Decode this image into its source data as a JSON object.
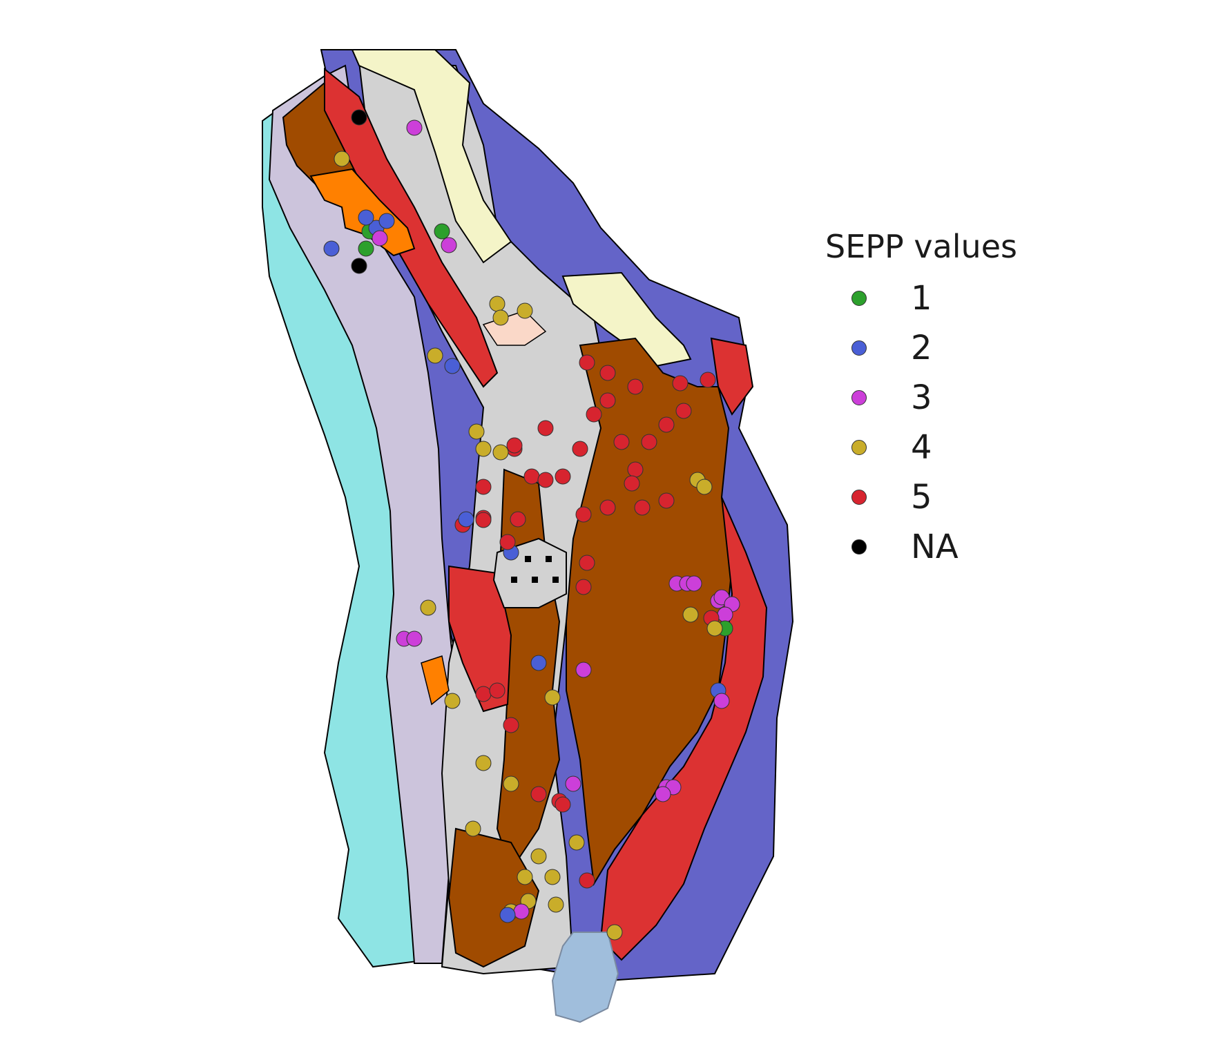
{
  "legend": {
    "title": "SEPP values",
    "items": [
      {
        "label": "1",
        "color": "#2ca02c"
      },
      {
        "label": "2",
        "color": "#4a5fd6"
      },
      {
        "label": "3",
        "color": "#cc3fd9"
      },
      {
        "label": "4",
        "color": "#c9ad2a"
      },
      {
        "label": "5",
        "color": "#d7242f"
      },
      {
        "label": "NA",
        "color": "#000000"
      }
    ]
  },
  "colors": {
    "outer_blue": "#6464c8",
    "cyan": "#8ee4e4",
    "lavender": "#ccc4dc",
    "brown": "#a04b00",
    "red": "#dc3232",
    "gray": "#d2d2d2",
    "cream": "#f4f4c8",
    "orange": "#ff8000",
    "peach": "#fad8c8",
    "lake": "#a0bedc"
  }
}
